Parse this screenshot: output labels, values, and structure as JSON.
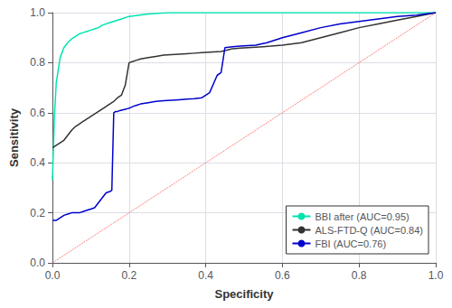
{
  "chart_data": {
    "type": "line",
    "xlabel": "Specificity",
    "ylabel": "Sensitivity",
    "xlim": [
      0,
      1.0
    ],
    "ylim": [
      0,
      1.0
    ],
    "xticks": [
      {
        "value": 0,
        "label": "0.0"
      },
      0.2,
      0.4,
      0.6,
      0.8,
      {
        "value": 1.0,
        "label": "1.0"
      }
    ],
    "yticks": [
      {
        "value": 0,
        "label": "0.0"
      },
      0.2,
      0.4,
      0.6,
      0.8,
      {
        "value": 1.0,
        "label": "1.0"
      }
    ],
    "grid": true,
    "legend": "lower right",
    "series": [
      {
        "color": "#ff5555",
        "line_style": "dotted",
        "marker": "none",
        "x": [
          0,
          1
        ],
        "values": [
          0,
          1
        ]
      },
      {
        "name": "BBI after (AUC=0.95)",
        "color": "#00e5b0",
        "line_style": "solid",
        "marker": "none",
        "x": [
          0.0,
          0.005,
          0.01,
          0.02,
          0.03,
          0.04,
          0.05,
          0.06,
          0.07,
          0.08,
          0.09,
          0.1,
          0.11,
          0.12,
          0.13,
          0.15,
          0.18,
          0.2,
          0.25,
          0.3,
          0.4,
          0.5,
          0.6,
          0.7,
          0.8,
          0.9,
          1.0
        ],
        "values": [
          0.33,
          0.58,
          0.72,
          0.82,
          0.86,
          0.88,
          0.895,
          0.905,
          0.915,
          0.92,
          0.925,
          0.93,
          0.935,
          0.94,
          0.95,
          0.96,
          0.975,
          0.985,
          0.995,
          1.0,
          1.0,
          1.0,
          1.0,
          1.0,
          1.0,
          1.0,
          1.0
        ]
      },
      {
        "name": "ALS-FTD-Q (AUC=0.84)",
        "color": "#333333",
        "line_style": "solid",
        "marker": "none",
        "x": [
          0.0,
          0.01,
          0.02,
          0.03,
          0.04,
          0.05,
          0.06,
          0.07,
          0.075,
          0.08,
          0.085,
          0.09,
          0.095,
          0.1,
          0.105,
          0.11,
          0.115,
          0.12,
          0.125,
          0.13,
          0.135,
          0.14,
          0.145,
          0.15,
          0.155,
          0.16,
          0.17,
          0.18,
          0.19,
          0.2,
          0.21,
          0.22,
          0.23,
          0.25,
          0.27,
          0.29,
          0.31,
          0.33,
          0.35,
          0.37,
          0.39,
          0.41,
          0.43,
          0.44,
          0.45,
          0.46,
          0.47,
          0.49,
          0.51,
          0.53,
          0.55,
          0.57,
          0.6,
          0.65,
          0.7,
          0.75,
          0.8,
          0.85,
          0.9,
          0.95,
          1.0
        ],
        "values": [
          0.46,
          0.47,
          0.48,
          0.49,
          0.51,
          0.53,
          0.545,
          0.555,
          0.56,
          0.565,
          0.57,
          0.575,
          0.58,
          0.585,
          0.59,
          0.595,
          0.6,
          0.605,
          0.61,
          0.615,
          0.62,
          0.625,
          0.63,
          0.635,
          0.64,
          0.645,
          0.66,
          0.67,
          0.71,
          0.8,
          0.805,
          0.81,
          0.815,
          0.82,
          0.825,
          0.83,
          0.832,
          0.834,
          0.836,
          0.838,
          0.84,
          0.842,
          0.844,
          0.845,
          0.848,
          0.852,
          0.856,
          0.858,
          0.86,
          0.862,
          0.864,
          0.866,
          0.87,
          0.88,
          0.9,
          0.92,
          0.94,
          0.955,
          0.97,
          0.985,
          1.0
        ]
      },
      {
        "name": "FBI (AUC=0.76)",
        "color": "#0000cc",
        "line_style": "solid",
        "marker": "none",
        "x": [
          0.0,
          0.005,
          0.01,
          0.015,
          0.02,
          0.025,
          0.03,
          0.04,
          0.05,
          0.06,
          0.07,
          0.08,
          0.09,
          0.1,
          0.11,
          0.12,
          0.13,
          0.14,
          0.15,
          0.155,
          0.16,
          0.165,
          0.17,
          0.175,
          0.18,
          0.185,
          0.19,
          0.195,
          0.2,
          0.21,
          0.22,
          0.23,
          0.25,
          0.27,
          0.29,
          0.31,
          0.33,
          0.35,
          0.37,
          0.39,
          0.41,
          0.43,
          0.44,
          0.45,
          0.46,
          0.47,
          0.49,
          0.51,
          0.53,
          0.56,
          0.6,
          0.65,
          0.7,
          0.75,
          0.8,
          0.85,
          0.9,
          0.95,
          1.0
        ],
        "values": [
          0.17,
          0.17,
          0.17,
          0.175,
          0.18,
          0.185,
          0.19,
          0.195,
          0.2,
          0.2,
          0.2,
          0.205,
          0.21,
          0.215,
          0.22,
          0.24,
          0.26,
          0.28,
          0.285,
          0.29,
          0.6,
          0.605,
          0.605,
          0.608,
          0.61,
          0.612,
          0.614,
          0.616,
          0.618,
          0.625,
          0.63,
          0.635,
          0.64,
          0.645,
          0.648,
          0.65,
          0.652,
          0.654,
          0.656,
          0.66,
          0.68,
          0.75,
          0.76,
          0.86,
          0.862,
          0.864,
          0.866,
          0.868,
          0.87,
          0.88,
          0.9,
          0.92,
          0.94,
          0.955,
          0.965,
          0.975,
          0.985,
          0.99,
          1.0
        ]
      }
    ]
  }
}
